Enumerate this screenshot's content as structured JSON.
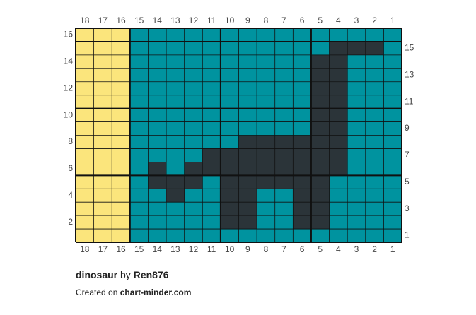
{
  "column_numbers": [
    18,
    17,
    16,
    15,
    14,
    13,
    12,
    11,
    10,
    9,
    8,
    7,
    6,
    5,
    4,
    3,
    2,
    1
  ],
  "row_numbers": [
    16,
    15,
    14,
    13,
    12,
    11,
    10,
    9,
    8,
    7,
    6,
    5,
    4,
    3,
    2,
    1
  ],
  "colors": [
    "#fbe57c",
    "#00939f",
    "#2b3439"
  ],
  "cells": [
    [
      0,
      0,
      0,
      1,
      1,
      1,
      1,
      1,
      1,
      1,
      1,
      1,
      1,
      1,
      1,
      1,
      1,
      1
    ],
    [
      0,
      0,
      0,
      1,
      1,
      1,
      1,
      1,
      1,
      1,
      1,
      1,
      1,
      1,
      2,
      2,
      2,
      1
    ],
    [
      0,
      0,
      0,
      1,
      1,
      1,
      1,
      1,
      1,
      1,
      1,
      1,
      1,
      2,
      2,
      1,
      1,
      1
    ],
    [
      0,
      0,
      0,
      1,
      1,
      1,
      1,
      1,
      1,
      1,
      1,
      1,
      1,
      2,
      2,
      1,
      1,
      1
    ],
    [
      0,
      0,
      0,
      1,
      1,
      1,
      1,
      1,
      1,
      1,
      1,
      1,
      1,
      2,
      2,
      1,
      1,
      1
    ],
    [
      0,
      0,
      0,
      1,
      1,
      1,
      1,
      1,
      1,
      1,
      1,
      1,
      1,
      2,
      2,
      1,
      1,
      1
    ],
    [
      0,
      0,
      0,
      1,
      1,
      1,
      1,
      1,
      1,
      1,
      1,
      1,
      1,
      2,
      2,
      1,
      1,
      1
    ],
    [
      0,
      0,
      0,
      1,
      1,
      1,
      1,
      1,
      1,
      1,
      1,
      1,
      1,
      2,
      2,
      1,
      1,
      1
    ],
    [
      0,
      0,
      0,
      1,
      1,
      1,
      1,
      1,
      1,
      2,
      2,
      2,
      2,
      2,
      2,
      1,
      1,
      1
    ],
    [
      0,
      0,
      0,
      1,
      1,
      1,
      1,
      2,
      2,
      2,
      2,
      2,
      2,
      2,
      2,
      1,
      1,
      1
    ],
    [
      0,
      0,
      0,
      1,
      2,
      1,
      2,
      2,
      2,
      2,
      2,
      2,
      2,
      2,
      2,
      1,
      1,
      1
    ],
    [
      0,
      0,
      0,
      1,
      2,
      2,
      2,
      1,
      2,
      2,
      2,
      2,
      2,
      2,
      1,
      1,
      1,
      1
    ],
    [
      0,
      0,
      0,
      1,
      1,
      2,
      1,
      1,
      2,
      2,
      1,
      1,
      2,
      2,
      1,
      1,
      1,
      1
    ],
    [
      0,
      0,
      0,
      1,
      1,
      1,
      1,
      1,
      2,
      2,
      1,
      1,
      2,
      2,
      1,
      1,
      1,
      1
    ],
    [
      0,
      0,
      0,
      1,
      1,
      1,
      1,
      1,
      2,
      2,
      1,
      1,
      2,
      2,
      1,
      1,
      1,
      1
    ],
    [
      0,
      0,
      0,
      1,
      1,
      1,
      1,
      1,
      1,
      1,
      1,
      1,
      1,
      1,
      1,
      1,
      1,
      1
    ]
  ],
  "footer": {
    "pattern_name": "dinosaur",
    "by": "by",
    "author": "Ren876",
    "created_on": "Created on",
    "site": "chart-minder.com"
  }
}
